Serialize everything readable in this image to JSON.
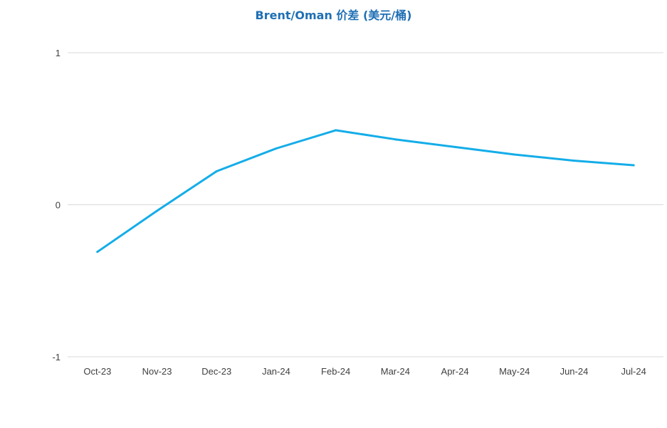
{
  "chart_data": {
    "type": "line",
    "title": "Brent/Oman 价差 (美元/桶)",
    "xlabel": "",
    "ylabel": "",
    "categories": [
      "Oct-23",
      "Nov-23",
      "Dec-23",
      "Jan-24",
      "Feb-24",
      "Mar-24",
      "Apr-24",
      "May-24",
      "Jun-24",
      "Jul-24"
    ],
    "series": [
      {
        "values": [
          -0.31,
          -0.04,
          0.22,
          0.37,
          0.49,
          0.43,
          0.38,
          0.33,
          0.29,
          0.26
        ],
        "color": "#14ade8"
      }
    ],
    "ylim": [
      -1,
      1
    ],
    "yticks": [
      1,
      0,
      -1
    ],
    "grid": true,
    "legend": "none"
  }
}
